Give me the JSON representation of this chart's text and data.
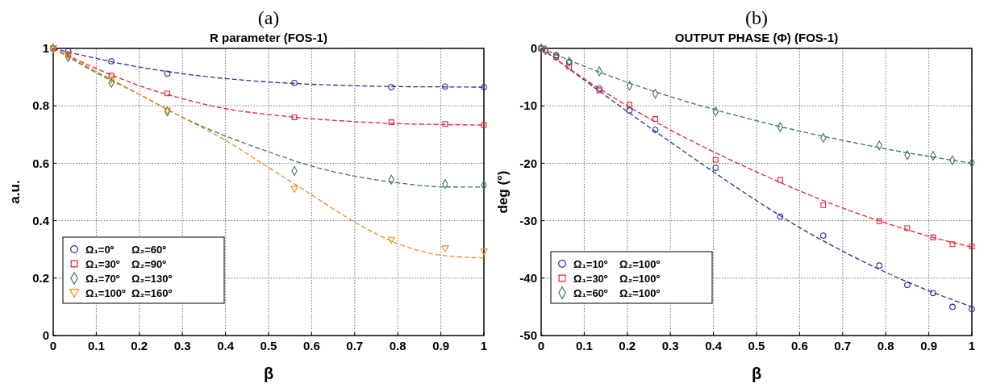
{
  "chart_data": [
    {
      "type": "scatter",
      "title": "(a)",
      "subtitle": "R parameter (FOS-1)",
      "xlabel": "β",
      "ylabel": "a.u.",
      "xlim": [
        0,
        1
      ],
      "ylim": [
        0,
        1
      ],
      "xticks": [
        0,
        0.1,
        0.2,
        0.3,
        0.4,
        0.5,
        0.6,
        0.7,
        0.8,
        0.9,
        1
      ],
      "yticks": [
        0,
        0.2,
        0.4,
        0.6,
        0.8,
        1
      ],
      "grid": true,
      "legend": "bottom left",
      "x": [
        0,
        0.035,
        0.135,
        0.265,
        0.56,
        0.785,
        0.91,
        1
      ],
      "series": [
        {
          "name": "Ω₁=0º      Ω₂=60º",
          "color": "#2b2b9e",
          "marker": "circle",
          "values": [
            null,
            0.99,
            0.955,
            0.912,
            0.88,
            0.865,
            0.867,
            0.865
          ]
        },
        {
          "name": "Ω₁=30º    Ω₂=90º",
          "color": "#e8202a",
          "marker": "square",
          "values": [
            1,
            0.98,
            0.905,
            0.843,
            0.76,
            0.743,
            0.737,
            0.733
          ]
        },
        {
          "name": "Ω₁=70º    Ω₂=130º",
          "color": "#3a7a50",
          "marker": "diamond",
          "values": [
            1,
            0.97,
            0.88,
            0.78,
            0.573,
            0.543,
            0.528,
            0.524
          ]
        },
        {
          "name": "Ω₁=100º  Ω₂=160º",
          "color": "#f08a1e",
          "marker": "triangle",
          "values": [
            1,
            0.975,
            0.89,
            0.783,
            0.51,
            0.333,
            0.303,
            0.293
          ]
        },
        {
          "type": "line",
          "color": "#2b2b9e",
          "line_style": "dashed",
          "marker": "none",
          "x": [
            0,
            0.1,
            0.2,
            0.3,
            0.4,
            0.5,
            0.6,
            0.7,
            0.8,
            0.9,
            1
          ],
          "values": [
            1,
            0.965,
            0.935,
            0.912,
            0.895,
            0.883,
            0.875,
            0.87,
            0.867,
            0.866,
            0.865
          ]
        },
        {
          "type": "line",
          "color": "#e8202a",
          "line_style": "dashed",
          "marker": "none",
          "x": [
            0,
            0.1,
            0.2,
            0.3,
            0.4,
            0.5,
            0.6,
            0.7,
            0.8,
            0.9,
            1
          ],
          "values": [
            1,
            0.93,
            0.87,
            0.825,
            0.79,
            0.77,
            0.755,
            0.745,
            0.738,
            0.735,
            0.733
          ]
        },
        {
          "type": "line",
          "color": "#3a7a50",
          "line_style": "dashed",
          "marker": "none",
          "x": [
            0,
            0.1,
            0.2,
            0.3,
            0.4,
            0.5,
            0.6,
            0.7,
            0.8,
            0.9,
            1
          ],
          "values": [
            1,
            0.915,
            0.84,
            0.76,
            0.695,
            0.64,
            0.59,
            0.555,
            0.532,
            0.518,
            0.517
          ]
        },
        {
          "type": "line",
          "color": "#f08a1e",
          "line_style": "dashed",
          "marker": "none",
          "x": [
            0,
            0.1,
            0.2,
            0.3,
            0.4,
            0.5,
            0.6,
            0.7,
            0.8,
            0.9,
            1
          ],
          "values": [
            1,
            0.92,
            0.84,
            0.76,
            0.68,
            0.585,
            0.49,
            0.395,
            0.32,
            0.28,
            0.27
          ]
        }
      ]
    },
    {
      "type": "scatter",
      "title": "(b)",
      "subtitle": "OUTPUT PHASE (Φ) (FOS-1)",
      "xlabel": "β",
      "ylabel": "deg (°)",
      "xlim": [
        0,
        1
      ],
      "ylim": [
        -50,
        0
      ],
      "xticks": [
        0,
        0.1,
        0.2,
        0.3,
        0.4,
        0.5,
        0.6,
        0.7,
        0.8,
        0.9,
        1
      ],
      "yticks": [
        -50,
        -40,
        -30,
        -20,
        -10,
        0
      ],
      "grid": true,
      "legend": "bottom left",
      "x": [
        0,
        0.01,
        0.035,
        0.065,
        0.135,
        0.205,
        0.265,
        0.405,
        0.555,
        0.655,
        0.785,
        0.85,
        0.91,
        0.955,
        1
      ],
      "series": [
        {
          "name": "Ω₁=10º    Ω₂=100º",
          "color": "#2b2b9e",
          "marker": "circle",
          "values": [
            0,
            null,
            -1.2,
            -2.4,
            -7,
            -10.8,
            -14.2,
            -20.8,
            -29.3,
            -32.6,
            -37.8,
            -41.2,
            -42.6,
            -45,
            -45.4
          ]
        },
        {
          "name": "Ω₁=30º    Ω₂=100º",
          "color": "#e8202a",
          "marker": "square",
          "values": [
            0,
            -0.3,
            -1.5,
            -3.2,
            -7.3,
            -9.8,
            -12.3,
            -19.4,
            -22.9,
            -27.3,
            -30.1,
            -31.3,
            -32.9,
            -34.1,
            -34.5
          ]
        },
        {
          "name": "Ω₁=60º    Ω₂=100º",
          "color": "#3a7a50",
          "marker": "diamond",
          "values": [
            0,
            -0.3,
            -1.4,
            -2.3,
            -4,
            -6.5,
            -7.9,
            -11,
            -13.7,
            -15.6,
            -16.9,
            -18.6,
            -18.7,
            -19.5,
            -19.9
          ]
        },
        {
          "type": "line",
          "color": "#2b2b9e",
          "line_style": "dashed",
          "marker": "none",
          "x": [
            0,
            0.1,
            0.2,
            0.3,
            0.4,
            0.5,
            0.6,
            0.7,
            0.8,
            0.9,
            1
          ],
          "values": [
            0,
            -5.5,
            -11,
            -16.3,
            -21.5,
            -26.5,
            -31.2,
            -35.3,
            -39,
            -42.2,
            -45
          ]
        },
        {
          "type": "line",
          "color": "#e8202a",
          "line_style": "dashed",
          "marker": "none",
          "x": [
            0,
            0.1,
            0.2,
            0.3,
            0.4,
            0.5,
            0.6,
            0.7,
            0.8,
            0.9,
            1
          ],
          "values": [
            0,
            -5.3,
            -10,
            -14.2,
            -18,
            -21.5,
            -24.8,
            -27.8,
            -30.4,
            -32.7,
            -34.6
          ]
        },
        {
          "type": "line",
          "color": "#3a7a50",
          "line_style": "dashed",
          "marker": "none",
          "x": [
            0,
            0.1,
            0.2,
            0.3,
            0.4,
            0.5,
            0.6,
            0.7,
            0.8,
            0.9,
            1
          ],
          "values": [
            0,
            -3.1,
            -5.9,
            -8.4,
            -10.6,
            -12.6,
            -14.4,
            -16,
            -17.5,
            -18.8,
            -20
          ]
        }
      ]
    }
  ]
}
